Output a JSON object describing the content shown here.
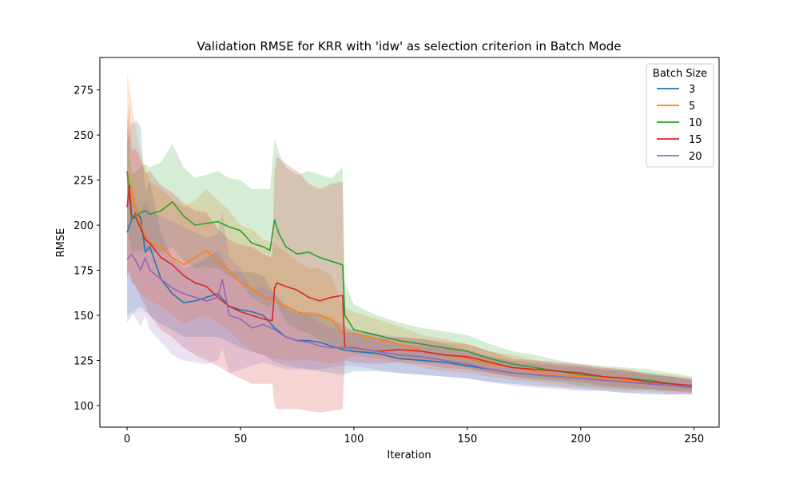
{
  "chart_data": {
    "type": "line",
    "title": "Validation RMSE for KRR with 'idw' as selection criterion in Batch Mode",
    "xlabel": "Iteration",
    "ylabel": "RMSE",
    "xlim": [
      -12,
      261
    ],
    "ylim": [
      88,
      293
    ],
    "xticks": [
      0,
      50,
      100,
      150,
      200,
      250
    ],
    "yticks": [
      100,
      125,
      150,
      175,
      200,
      225,
      250,
      275
    ],
    "grid": false,
    "legend": {
      "title": "Batch Size",
      "placement": "top-right"
    },
    "series": [
      {
        "name": "3",
        "color": "#1f77b4",
        "x": [
          0,
          2,
          4,
          6,
          8,
          10,
          15,
          20,
          25,
          30,
          35,
          40,
          45,
          50,
          55,
          60,
          65,
          70,
          75,
          80,
          85,
          90,
          95,
          100,
          110,
          120,
          130,
          140,
          150,
          160,
          170,
          180,
          190,
          200,
          210,
          220,
          230,
          240,
          249
        ],
        "y": [
          196,
          203,
          207,
          204,
          185,
          188,
          170,
          162,
          157,
          158,
          160,
          162,
          155,
          153,
          152,
          150,
          143,
          138,
          136,
          136,
          135,
          133,
          131,
          130,
          129,
          126,
          125,
          124,
          122,
          120,
          118,
          117,
          116,
          115,
          114,
          113,
          112,
          111,
          110
        ],
        "lower": [
          146,
          150,
          153,
          155,
          152,
          150,
          145,
          142,
          138,
          138,
          138,
          138,
          135,
          132,
          130,
          128,
          124,
          122,
          121,
          120,
          119,
          118,
          117,
          119,
          119,
          118,
          117,
          116,
          115,
          113,
          112,
          111,
          110,
          109,
          108,
          107,
          106,
          106,
          106
        ],
        "upper": [
          246,
          256,
          258,
          255,
          218,
          225,
          195,
          182,
          176,
          178,
          182,
          186,
          175,
          174,
          174,
          172,
          162,
          154,
          151,
          152,
          151,
          148,
          145,
          141,
          139,
          134,
          133,
          132,
          129,
          127,
          124,
          123,
          122,
          121,
          120,
          119,
          118,
          116,
          114
        ]
      },
      {
        "name": "5",
        "color": "#ff7f0e",
        "x": [
          0,
          2,
          4,
          6,
          8,
          10,
          15,
          20,
          25,
          30,
          35,
          40,
          45,
          50,
          55,
          60,
          65,
          70,
          75,
          80,
          85,
          90,
          95,
          100,
          110,
          120,
          130,
          140,
          150,
          160,
          170,
          180,
          190,
          200,
          210,
          220,
          230,
          240,
          249
        ],
        "y": [
          230,
          220,
          208,
          200,
          195,
          190,
          188,
          182,
          178,
          182,
          186,
          180,
          175,
          168,
          165,
          160,
          158,
          155,
          152,
          150,
          150,
          148,
          140,
          140,
          137,
          134,
          130,
          128,
          126,
          123,
          121,
          119,
          117,
          116,
          115,
          114,
          113,
          112,
          111
        ],
        "lower": [
          175,
          170,
          165,
          162,
          160,
          158,
          155,
          150,
          145,
          148,
          150,
          146,
          141,
          135,
          130,
          128,
          126,
          125,
          125,
          125,
          124,
          123,
          125,
          128,
          126,
          124,
          121,
          119,
          118,
          116,
          114,
          113,
          111,
          110,
          109,
          108,
          108,
          107,
          107
        ],
        "upper": [
          285,
          268,
          252,
          240,
          232,
          224,
          220,
          214,
          210,
          214,
          220,
          214,
          208,
          200,
          198,
          192,
          190,
          185,
          180,
          176,
          176,
          172,
          155,
          152,
          148,
          144,
          139,
          137,
          134,
          130,
          128,
          125,
          123,
          122,
          121,
          120,
          118,
          117,
          115
        ]
      },
      {
        "name": "10",
        "color": "#2ca02c",
        "x": [
          0,
          2,
          4,
          6,
          8,
          10,
          15,
          20,
          25,
          30,
          35,
          40,
          45,
          50,
          55,
          60,
          63,
          65,
          67,
          70,
          75,
          80,
          85,
          90,
          95,
          96,
          100,
          110,
          120,
          130,
          140,
          150,
          160,
          170,
          180,
          190,
          200,
          210,
          220,
          230,
          240,
          249
        ],
        "y": [
          230,
          203,
          205,
          207,
          208,
          206,
          208,
          213,
          205,
          200,
          201,
          202,
          199,
          197,
          190,
          188,
          186,
          203,
          195,
          188,
          184,
          185,
          182,
          180,
          178,
          150,
          142,
          139,
          136,
          134,
          132,
          130,
          126,
          123,
          121,
          119,
          117,
          116,
          115,
          114,
          112,
          111
        ],
        "lower": [
          200,
          185,
          185,
          186,
          186,
          185,
          185,
          188,
          180,
          176,
          177,
          176,
          172,
          168,
          160,
          156,
          154,
          160,
          154,
          146,
          142,
          140,
          136,
          134,
          130,
          132,
          129,
          128,
          126,
          124,
          123,
          121,
          118,
          116,
          114,
          113,
          111,
          110,
          109,
          109,
          108,
          108
        ],
        "upper": [
          262,
          228,
          230,
          232,
          234,
          232,
          235,
          245,
          232,
          226,
          228,
          230,
          226,
          225,
          220,
          220,
          220,
          248,
          240,
          232,
          228,
          230,
          228,
          226,
          232,
          168,
          156,
          150,
          146,
          143,
          141,
          139,
          134,
          130,
          128,
          125,
          123,
          122,
          121,
          120,
          118,
          116
        ]
      },
      {
        "name": "15",
        "color": "#d62728",
        "x": [
          0,
          1,
          2,
          4,
          6,
          8,
          10,
          15,
          20,
          25,
          30,
          35,
          40,
          45,
          50,
          55,
          60,
          64,
          65,
          66,
          70,
          75,
          80,
          85,
          90,
          95,
          96,
          100,
          110,
          120,
          130,
          140,
          150,
          160,
          170,
          180,
          190,
          200,
          210,
          220,
          230,
          240,
          249
        ],
        "y": [
          210,
          222,
          205,
          204,
          198,
          192,
          190,
          182,
          178,
          172,
          168,
          166,
          160,
          155,
          152,
          150,
          148,
          147,
          165,
          168,
          166,
          164,
          160,
          158,
          160,
          161,
          132,
          132,
          130,
          131,
          130,
          128,
          127,
          124,
          121,
          120,
          119,
          118,
          116,
          115,
          113,
          112,
          111
        ],
        "lower": [
          170,
          175,
          168,
          166,
          160,
          155,
          150,
          142,
          138,
          132,
          128,
          125,
          122,
          118,
          115,
          112,
          112,
          112,
          100,
          98,
          98,
          98,
          97,
          96,
          97,
          98,
          125,
          124,
          123,
          124,
          123,
          121,
          120,
          118,
          116,
          115,
          114,
          113,
          111,
          110,
          109,
          108,
          107
        ],
        "upper": [
          250,
          268,
          242,
          242,
          236,
          229,
          230,
          222,
          218,
          212,
          208,
          207,
          198,
          192,
          189,
          188,
          184,
          182,
          230,
          238,
          234,
          230,
          223,
          220,
          223,
          224,
          139,
          140,
          137,
          138,
          137,
          135,
          134,
          130,
          126,
          125,
          124,
          123,
          121,
          120,
          117,
          116,
          115
        ]
      },
      {
        "name": "20",
        "color": "#9467bd",
        "x": [
          0,
          2,
          4,
          6,
          8,
          10,
          15,
          20,
          25,
          30,
          35,
          40,
          42,
          45,
          50,
          55,
          60,
          65,
          70,
          75,
          80,
          85,
          90,
          95,
          100,
          110,
          120,
          130,
          140,
          150,
          160,
          170,
          180,
          190,
          200,
          210,
          220,
          230,
          240,
          249
        ],
        "y": [
          181,
          184,
          180,
          175,
          182,
          175,
          170,
          165,
          162,
          160,
          158,
          160,
          170,
          150,
          148,
          143,
          145,
          142,
          138,
          136,
          135,
          133,
          132,
          132,
          132,
          130,
          128,
          127,
          125,
          123,
          120,
          118,
          117,
          116,
          115,
          114,
          113,
          112,
          111,
          110
        ],
        "lower": [
          150,
          152,
          148,
          144,
          150,
          142,
          135,
          128,
          125,
          124,
          123,
          125,
          132,
          118,
          120,
          122,
          124,
          122,
          120,
          120,
          120,
          120,
          121,
          122,
          122,
          120,
          118,
          117,
          116,
          115,
          113,
          111,
          110,
          109,
          108,
          108,
          107,
          107,
          106,
          106
        ],
        "upper": [
          212,
          216,
          212,
          206,
          214,
          208,
          205,
          202,
          199,
          196,
          193,
          195,
          208,
          182,
          176,
          164,
          166,
          162,
          156,
          152,
          150,
          146,
          143,
          142,
          142,
          140,
          138,
          137,
          134,
          131,
          127,
          125,
          124,
          123,
          122,
          120,
          119,
          117,
          116,
          114
        ]
      }
    ]
  }
}
